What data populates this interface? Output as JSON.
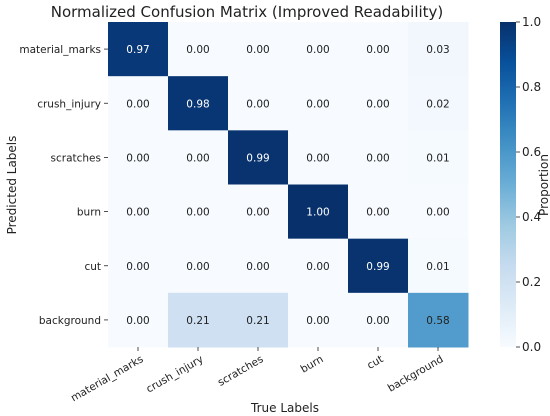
{
  "chart_data": {
    "type": "heatmap",
    "title": "Normalized Confusion Matrix (Improved Readability)",
    "xlabel": "True Labels",
    "ylabel": "Predicted Labels",
    "x_categories": [
      "material_marks",
      "crush_injury",
      "scratches",
      "burn",
      "cut",
      "background"
    ],
    "y_categories": [
      "material_marks",
      "crush_injury",
      "scratches",
      "burn",
      "cut",
      "background"
    ],
    "values": [
      [
        0.97,
        0.0,
        0.0,
        0.0,
        0.0,
        0.03
      ],
      [
        0.0,
        0.98,
        0.0,
        0.0,
        0.0,
        0.02
      ],
      [
        0.0,
        0.0,
        0.99,
        0.0,
        0.0,
        0.01
      ],
      [
        0.0,
        0.0,
        0.0,
        1.0,
        0.0,
        0.0
      ],
      [
        0.0,
        0.0,
        0.0,
        0.0,
        0.99,
        0.01
      ],
      [
        0.0,
        0.21,
        0.21,
        0.0,
        0.0,
        0.58
      ]
    ],
    "colorbar": {
      "label": "Proportion",
      "range": [
        0.0,
        1.0
      ],
      "ticks": [
        "0.0",
        "0.2",
        "0.4",
        "0.6",
        "0.8",
        "1.0"
      ],
      "colormap": "Blues"
    },
    "value_format": "2 decimals"
  }
}
